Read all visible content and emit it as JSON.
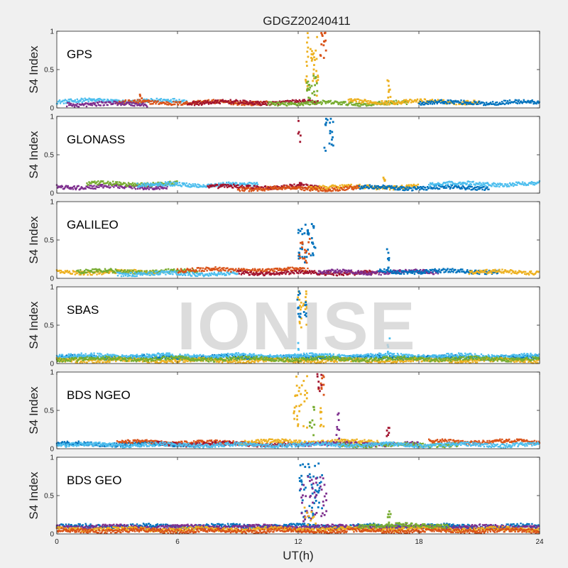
{
  "figure": {
    "title": "GDGZ20240411",
    "xlabel": "UT(h)",
    "ylabel": "S4 Index",
    "watermark": "IONISE"
  },
  "chart_data": {
    "type": "scatter",
    "title": "GDGZ20240411",
    "xlabel": "UT(h)",
    "ylabel": "S4 Index",
    "xlim": [
      0,
      24
    ],
    "ylim": [
      0,
      1
    ],
    "xticks": [
      0,
      6,
      12,
      18,
      24
    ],
    "yticks": [
      0,
      0.5,
      1
    ],
    "xtick_labels": [
      "0",
      "6",
      "12",
      "18",
      "24"
    ],
    "ytick_labels": [
      "0",
      "0.5",
      "1"
    ],
    "grid": false,
    "colors": [
      "#0072BD",
      "#D95319",
      "#EDB120",
      "#7E2F8E",
      "#77AC30",
      "#4DBEEE",
      "#A2142F"
    ],
    "panels": [
      {
        "label": "GPS",
        "baseline": 0.08,
        "arcs": [
          {
            "color": 5,
            "x0": 0.0,
            "x1": 6.5,
            "y": 0.09
          },
          {
            "color": 1,
            "x0": 3.0,
            "x1": 10.5,
            "y": 0.07
          },
          {
            "color": 6,
            "x0": 6.5,
            "x1": 13.0,
            "y": 0.07
          },
          {
            "color": 4,
            "x0": 10.5,
            "x1": 17.5,
            "y": 0.06
          },
          {
            "color": 2,
            "x0": 14.5,
            "x1": 21.0,
            "y": 0.08
          },
          {
            "color": 0,
            "x0": 18.0,
            "x1": 24.0,
            "y": 0.07
          },
          {
            "color": 3,
            "x0": 0.5,
            "x1": 4.5,
            "y": 0.05
          }
        ],
        "events": [
          {
            "color": 2,
            "x0": 12.35,
            "x1": 13.0,
            "ymin": 0.15,
            "ymax": 1.0,
            "n": 40
          },
          {
            "color": 4,
            "x0": 12.4,
            "x1": 13.0,
            "ymin": 0.12,
            "ymax": 0.42,
            "n": 22
          },
          {
            "color": 1,
            "x0": 13.1,
            "x1": 13.45,
            "ymin": 0.65,
            "ymax": 0.98,
            "n": 14
          },
          {
            "color": 2,
            "x0": 16.4,
            "x1": 16.6,
            "ymin": 0.12,
            "ymax": 0.37,
            "n": 8
          },
          {
            "color": 1,
            "x0": 4.1,
            "x1": 4.3,
            "ymin": 0.12,
            "ymax": 0.18,
            "n": 3
          }
        ]
      },
      {
        "label": "GLONASS",
        "baseline": 0.09,
        "arcs": [
          {
            "color": 3,
            "x0": 0.0,
            "x1": 5.5,
            "y": 0.08
          },
          {
            "color": 4,
            "x0": 1.5,
            "x1": 6.0,
            "y": 0.12
          },
          {
            "color": 5,
            "x0": 4.0,
            "x1": 10.0,
            "y": 0.11
          },
          {
            "color": 6,
            "x0": 7.5,
            "x1": 13.0,
            "y": 0.08
          },
          {
            "color": 2,
            "x0": 12.5,
            "x1": 18.0,
            "y": 0.08
          },
          {
            "color": 0,
            "x0": 15.0,
            "x1": 21.5,
            "y": 0.07
          },
          {
            "color": 5,
            "x0": 18.5,
            "x1": 24.0,
            "y": 0.12
          },
          {
            "color": 1,
            "x0": 9.0,
            "x1": 15.0,
            "y": 0.06
          }
        ],
        "events": [
          {
            "color": 6,
            "x0": 12.0,
            "x1": 12.15,
            "ymin": 0.55,
            "ymax": 0.95,
            "n": 5
          },
          {
            "color": 0,
            "x0": 13.3,
            "x1": 13.75,
            "ymin": 0.55,
            "ymax": 0.98,
            "n": 18
          },
          {
            "color": 6,
            "x0": 12.0,
            "x1": 12.15,
            "ymin": 0.1,
            "ymax": 0.25,
            "n": 4
          },
          {
            "color": 2,
            "x0": 16.2,
            "x1": 16.4,
            "ymin": 0.12,
            "ymax": 0.22,
            "n": 4
          }
        ]
      },
      {
        "label": "GALILEO",
        "baseline": 0.08,
        "arcs": [
          {
            "color": 2,
            "x0": 0.0,
            "x1": 5.0,
            "y": 0.08
          },
          {
            "color": 4,
            "x0": 1.0,
            "x1": 7.0,
            "y": 0.09
          },
          {
            "color": 5,
            "x0": 3.0,
            "x1": 9.0,
            "y": 0.06
          },
          {
            "color": 1,
            "x0": 6.0,
            "x1": 12.5,
            "y": 0.11
          },
          {
            "color": 6,
            "x0": 9.0,
            "x1": 16.0,
            "y": 0.07
          },
          {
            "color": 3,
            "x0": 13.0,
            "x1": 19.0,
            "y": 0.08
          },
          {
            "color": 0,
            "x0": 16.0,
            "x1": 22.0,
            "y": 0.09
          },
          {
            "color": 2,
            "x0": 20.5,
            "x1": 24.0,
            "y": 0.08
          }
        ],
        "events": [
          {
            "color": 0,
            "x0": 12.0,
            "x1": 12.85,
            "ymin": 0.2,
            "ymax": 0.72,
            "n": 40
          },
          {
            "color": 1,
            "x0": 12.05,
            "x1": 12.6,
            "ymin": 0.2,
            "ymax": 0.62,
            "n": 16
          },
          {
            "color": 0,
            "x0": 16.4,
            "x1": 16.55,
            "ymin": 0.1,
            "ymax": 0.38,
            "n": 7
          }
        ]
      },
      {
        "label": "SBAS",
        "baseline": 0.08,
        "arcs": [
          {
            "color": 0,
            "x0": 0.0,
            "x1": 24.0,
            "y": 0.08
          },
          {
            "color": 5,
            "x0": 0.0,
            "x1": 24.0,
            "y": 0.1
          },
          {
            "color": 2,
            "x0": 0.0,
            "x1": 24.0,
            "y": 0.04
          },
          {
            "color": 4,
            "x0": 0.0,
            "x1": 24.0,
            "y": 0.06
          }
        ],
        "events": [
          {
            "color": 2,
            "x0": 11.95,
            "x1": 12.45,
            "ymin": 0.45,
            "ymax": 1.0,
            "n": 22
          },
          {
            "color": 0,
            "x0": 11.95,
            "x1": 12.45,
            "ymin": 0.6,
            "ymax": 0.98,
            "n": 18
          },
          {
            "color": 5,
            "x0": 11.95,
            "x1": 12.1,
            "ymin": 0.1,
            "ymax": 0.3,
            "n": 4
          },
          {
            "color": 5,
            "x0": 16.4,
            "x1": 16.55,
            "ymin": 0.15,
            "ymax": 0.35,
            "n": 4
          }
        ]
      },
      {
        "label": "BDS NGEO",
        "baseline": 0.06,
        "arcs": [
          {
            "color": 0,
            "x0": 0.0,
            "x1": 7.0,
            "y": 0.06
          },
          {
            "color": 1,
            "x0": 3.0,
            "x1": 10.0,
            "y": 0.08
          },
          {
            "color": 6,
            "x0": 5.0,
            "x1": 12.0,
            "y": 0.06
          },
          {
            "color": 2,
            "x0": 9.0,
            "x1": 16.0,
            "y": 0.09
          },
          {
            "color": 3,
            "x0": 12.0,
            "x1": 18.0,
            "y": 0.06
          },
          {
            "color": 4,
            "x0": 14.0,
            "x1": 20.0,
            "y": 0.05
          },
          {
            "color": 1,
            "x0": 18.5,
            "x1": 24.0,
            "y": 0.09
          },
          {
            "color": 5,
            "x0": 0.0,
            "x1": 24.0,
            "y": 0.05
          }
        ],
        "events": [
          {
            "color": 2,
            "x0": 11.75,
            "x1": 12.45,
            "ymin": 0.25,
            "ymax": 1.0,
            "n": 30
          },
          {
            "color": 4,
            "x0": 12.5,
            "x1": 12.9,
            "ymin": 0.15,
            "ymax": 0.55,
            "n": 10
          },
          {
            "color": 1,
            "x0": 13.0,
            "x1": 13.35,
            "ymin": 0.7,
            "ymax": 0.98,
            "n": 10
          },
          {
            "color": 6,
            "x0": 12.95,
            "x1": 13.25,
            "ymin": 0.75,
            "ymax": 0.98,
            "n": 8
          },
          {
            "color": 2,
            "x0": 13.1,
            "x1": 13.3,
            "ymin": 0.25,
            "ymax": 0.6,
            "n": 8
          },
          {
            "color": 3,
            "x0": 13.9,
            "x1": 14.05,
            "ymin": 0.12,
            "ymax": 0.52,
            "n": 8
          },
          {
            "color": 6,
            "x0": 16.4,
            "x1": 16.6,
            "ymin": 0.15,
            "ymax": 0.33,
            "n": 6
          }
        ]
      },
      {
        "label": "BDS GEO",
        "baseline": 0.08,
        "arcs": [
          {
            "color": 0,
            "x0": 0.0,
            "x1": 24.0,
            "y": 0.1
          },
          {
            "color": 3,
            "x0": 0.0,
            "x1": 24.0,
            "y": 0.09
          },
          {
            "color": 2,
            "x0": 0.0,
            "x1": 24.0,
            "y": 0.06
          },
          {
            "color": 1,
            "x0": 0.0,
            "x1": 24.0,
            "y": 0.04
          },
          {
            "color": 4,
            "x0": 15.0,
            "x1": 19.5,
            "y": 0.11
          }
        ],
        "events": [
          {
            "color": 0,
            "x0": 12.0,
            "x1": 13.2,
            "ymin": 0.2,
            "ymax": 0.92,
            "n": 50
          },
          {
            "color": 3,
            "x0": 12.1,
            "x1": 13.4,
            "ymin": 0.15,
            "ymax": 0.75,
            "n": 45
          },
          {
            "color": 2,
            "x0": 12.2,
            "x1": 13.0,
            "ymin": 0.1,
            "ymax": 0.35,
            "n": 10
          },
          {
            "color": 4,
            "x0": 16.4,
            "x1": 16.6,
            "ymin": 0.12,
            "ymax": 0.33,
            "n": 7
          }
        ]
      }
    ]
  }
}
